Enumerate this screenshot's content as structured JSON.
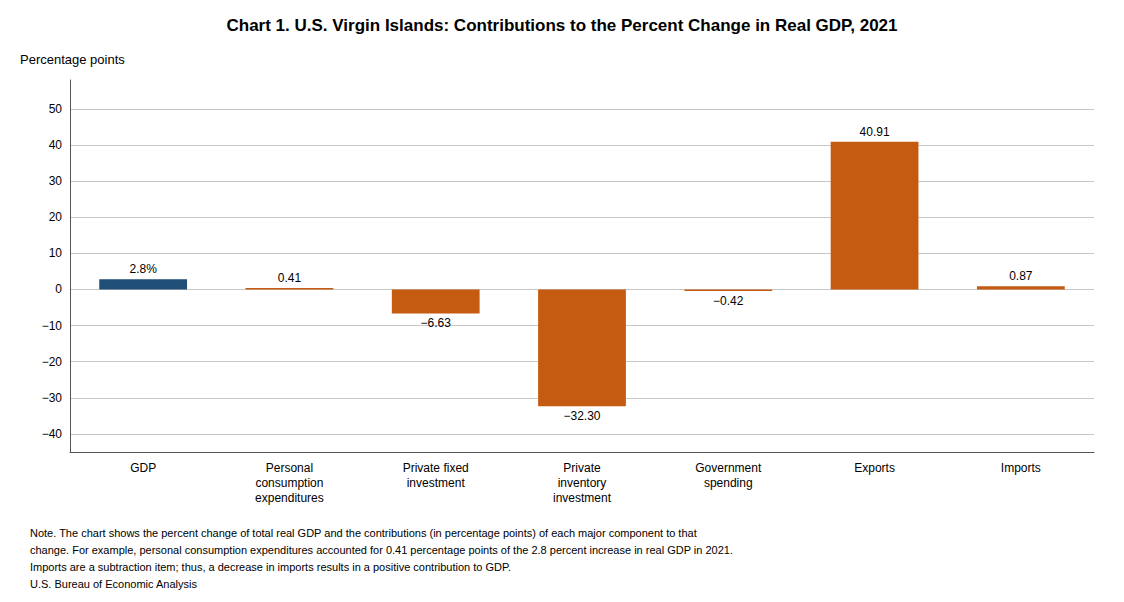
{
  "chart_data": {
    "type": "bar",
    "title": "Chart 1. U.S. Virgin Islands: Contributions to the Percent Change in Real GDP, 2021",
    "ylabel": "Percentage points",
    "categories": [
      "GDP",
      "Personal\nconsumption\nexpenditures",
      "Private fixed\ninvestment",
      "Private\ninventory\ninvestment",
      "Government\nspending",
      "Exports",
      "Imports"
    ],
    "values": [
      2.8,
      0.41,
      -6.63,
      -32.3,
      -0.42,
      40.91,
      0.87
    ],
    "value_labels": [
      "2.8%",
      "0.41",
      "−6.63",
      "−32.30",
      "−0.42",
      "40.91",
      "0.87"
    ],
    "data_labels": true,
    "colors": [
      "#1f4e79",
      "#c55a11",
      "#c55a11",
      "#c55a11",
      "#c55a11",
      "#c55a11",
      "#c55a11"
    ],
    "ylim": [
      -45,
      58
    ],
    "yticks": [
      {
        "value": -40,
        "label": "−40"
      },
      {
        "value": -30,
        "label": "−30"
      },
      {
        "value": -20,
        "label": "−20"
      },
      {
        "value": -10,
        "label": "−10"
      },
      0,
      10,
      20,
      30,
      40,
      50
    ],
    "grid": true,
    "annotations": [
      "Note. The chart shows the percent change of total real GDP and the contributions (in percentage points) of each major component to that",
      "change. For example, personal consumption expenditures accounted for 0.41 percentage points of the 2.8 percent increase in real GDP in 2021.",
      "Imports are a subtraction item; thus, a decrease in imports results in a positive contribution to GDP.",
      "U.S. Bureau of Economic Analysis"
    ]
  }
}
